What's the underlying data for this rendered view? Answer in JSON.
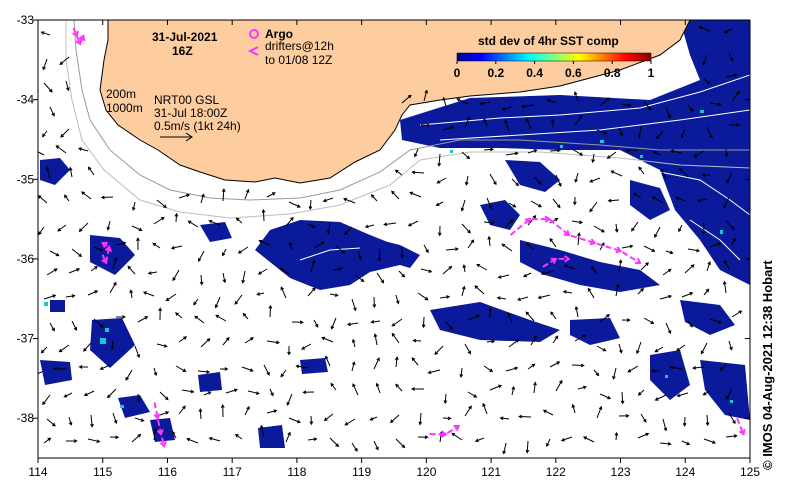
{
  "map": {
    "lon_range": [
      114,
      125
    ],
    "lat_range": [
      -38.5,
      -33
    ],
    "x_ticks": [
      "114",
      "115",
      "116",
      "117",
      "118",
      "119",
      "120",
      "121",
      "122",
      "123",
      "124",
      "125"
    ],
    "y_ticks": [
      "-33",
      "-34",
      "-35",
      "-36",
      "-37",
      "-38"
    ],
    "land_color": "#fdcc9f",
    "date_line1": "31-Jul-2021",
    "date_line2": "16Z",
    "argo_label": "Argo",
    "drifters_line1": "drifters@12h",
    "drifters_line2": "to 01/08 12Z",
    "drifter_color": "#ff33ff",
    "contour_200": "200m",
    "contour_1000": "1000m",
    "product_line1": "NRT00 GSL",
    "product_line2": "31-Jul 18:00Z",
    "product_line3": "0.5m/s (1kt 24h)",
    "colorbar_title": "std dev of 4hr SST comp",
    "colorbar_ticks": [
      "0",
      "0.2",
      "0.4",
      "0.6",
      "0.8",
      "1"
    ],
    "credit": "© IMOS 04-Aug-2021 12:38 Hobart"
  },
  "chart_data": {
    "type": "map",
    "colorbar": {
      "min": 0,
      "max": 1,
      "colormap": "jet"
    },
    "drifter_tracks": [
      {
        "points": [
          [
            114.55,
            -33.1
          ],
          [
            114.6,
            -33.2
          ],
          [
            114.65,
            -33.3
          ],
          [
            114.7,
            -33.2
          ]
        ]
      },
      {
        "points": [
          [
            115.0,
            -35.95
          ],
          [
            115.05,
            -36.05
          ],
          [
            115.1,
            -35.85
          ],
          [
            115.0,
            -35.8
          ]
        ]
      },
      {
        "points": [
          [
            121.3,
            -35.7
          ],
          [
            121.6,
            -35.5
          ],
          [
            121.9,
            -35.5
          ],
          [
            122.2,
            -35.7
          ],
          [
            122.6,
            -35.8
          ],
          [
            123.0,
            -35.9
          ],
          [
            123.3,
            -36.05
          ]
        ]
      },
      {
        "points": [
          [
            121.8,
            -36.1
          ],
          [
            122.0,
            -36.0
          ],
          [
            122.2,
            -36.0
          ]
        ]
      },
      {
        "points": [
          [
            115.8,
            -37.8
          ],
          [
            115.85,
            -38.0
          ],
          [
            115.9,
            -38.2
          ],
          [
            115.95,
            -38.35
          ]
        ]
      },
      {
        "points": [
          [
            120.05,
            -38.2
          ],
          [
            120.3,
            -38.2
          ],
          [
            120.5,
            -38.1
          ]
        ]
      },
      {
        "points": [
          [
            124.8,
            -38.0
          ],
          [
            124.9,
            -38.2
          ]
        ]
      }
    ]
  }
}
